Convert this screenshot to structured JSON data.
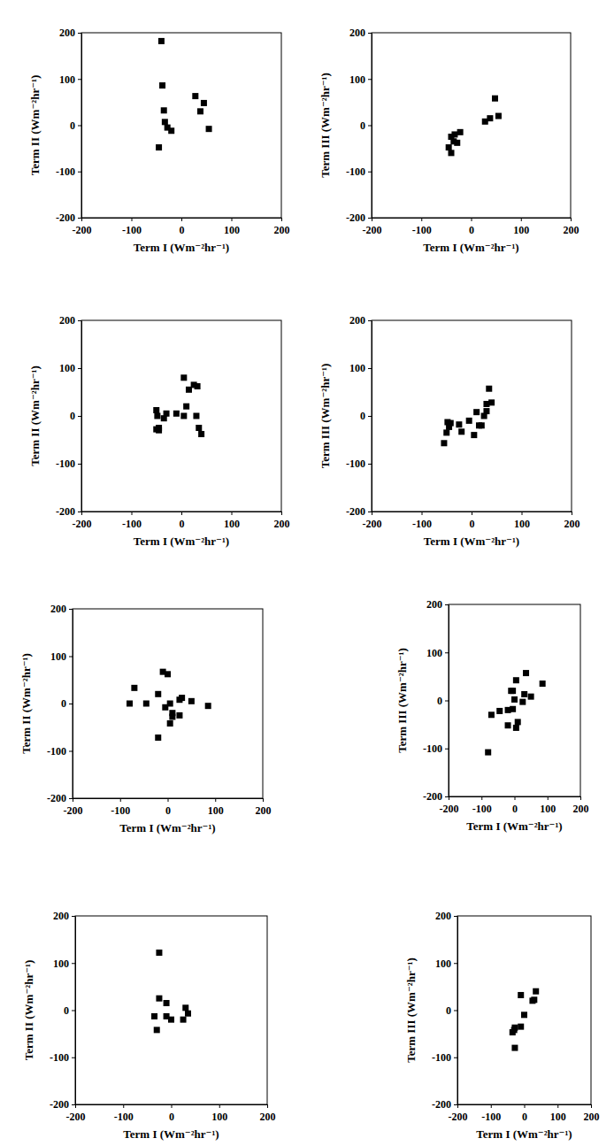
{
  "chart_data": [
    {
      "type": "scatter",
      "x_label": "Term I (Wm⁻²hr⁻¹)",
      "y_label": "Term II (Wm⁻²hr⁻¹)",
      "color": "#000000",
      "marker": "square",
      "x": [
        -40,
        -38,
        -35,
        -33,
        -28,
        -20,
        -45,
        28,
        45,
        38,
        55
      ],
      "values": [
        182,
        86,
        32,
        7,
        -5,
        -12,
        -48,
        63,
        48,
        30,
        -8
      ],
      "xlim": [
        -200,
        200
      ],
      "ylim": [
        -200,
        200
      ],
      "xticks": [
        -200,
        -100,
        0,
        100,
        200
      ],
      "yticks": [
        -200,
        -100,
        0,
        100,
        200
      ]
    },
    {
      "type": "scatter",
      "x_label": "Term I (Wm⁻²hr⁻¹)",
      "y_label": "Term III (Wm⁻²hr⁻¹)",
      "color": "#000000",
      "marker": "square",
      "x": [
        -45,
        -40,
        -40,
        -35,
        -33,
        -28,
        -22,
        28,
        38,
        48,
        55
      ],
      "values": [
        -48,
        -60,
        -25,
        -35,
        -20,
        -38,
        -15,
        8,
        15,
        58,
        20
      ],
      "xlim": [
        -200,
        200
      ],
      "ylim": [
        -200,
        200
      ],
      "xticks": [
        -200,
        -100,
        0,
        100,
        200
      ],
      "yticks": [
        -200,
        -100,
        0,
        100,
        200
      ]
    },
    {
      "type": "scatter",
      "x_label": "Term I (Wm⁻²hr⁻¹)",
      "y_label": "Term II (Wm⁻²hr⁻¹)",
      "color": "#000000",
      "marker": "square",
      "x": [
        -50,
        -48,
        -45,
        -50,
        -45,
        -30,
        -35,
        -10,
        5,
        10,
        15,
        25,
        32,
        5,
        30,
        35,
        40
      ],
      "values": [
        12,
        0,
        -25,
        -28,
        -30,
        5,
        -5,
        5,
        80,
        20,
        55,
        65,
        62,
        0,
        0,
        -25,
        -38
      ],
      "xlim": [
        -200,
        200
      ],
      "ylim": [
        -200,
        200
      ],
      "xticks": [
        -200,
        -100,
        0,
        100,
        200
      ],
      "yticks": [
        -200,
        -100,
        0,
        100,
        200
      ]
    },
    {
      "type": "scatter",
      "x_label": "Term I (Wm⁻²hr⁻¹)",
      "y_label": "Term III (Wm⁻²hr⁻¹)",
      "color": "#000000",
      "marker": "square",
      "x": [
        -55,
        -50,
        -48,
        -45,
        -42,
        -25,
        -20,
        -5,
        5,
        10,
        15,
        25,
        30,
        30,
        35,
        40,
        20
      ],
      "values": [
        -57,
        -35,
        -13,
        -23,
        -15,
        -18,
        -33,
        -10,
        -40,
        8,
        -20,
        0,
        10,
        25,
        57,
        28,
        -20
      ],
      "xlim": [
        -200,
        200
      ],
      "ylim": [
        -200,
        200
      ],
      "xticks": [
        -200,
        -100,
        0,
        100,
        200
      ],
      "yticks": [
        -200,
        -100,
        0,
        100,
        200
      ]
    },
    {
      "type": "scatter",
      "x_label": "Term I (Wm⁻²hr⁻¹)",
      "y_label": "Term II (Wm⁻²hr⁻¹)",
      "color": "#000000",
      "marker": "square",
      "x": [
        -80,
        -70,
        -45,
        -20,
        -20,
        -10,
        0,
        -5,
        5,
        5,
        10,
        10,
        25,
        25,
        30,
        50,
        85
      ],
      "values": [
        0,
        33,
        0,
        20,
        -72,
        67,
        62,
        -8,
        0,
        -42,
        -20,
        -28,
        -25,
        8,
        12,
        5,
        -5
      ],
      "xlim": [
        -200,
        200
      ],
      "ylim": [
        -200,
        200
      ],
      "xticks": [
        -200,
        -100,
        0,
        100,
        200
      ],
      "yticks": [
        -200,
        -100,
        0,
        100,
        200
      ]
    },
    {
      "type": "scatter",
      "x_label": "Term I (Wm⁻²hr⁻¹)",
      "y_label": "Term III (Wm⁻²hr⁻¹)",
      "color": "#000000",
      "marker": "square",
      "x": [
        -80,
        -70,
        -45,
        -20,
        -20,
        -10,
        -5,
        -5,
        0,
        5,
        5,
        10,
        25,
        30,
        35,
        50,
        85
      ],
      "values": [
        -108,
        -30,
        -22,
        -20,
        -52,
        20,
        20,
        -18,
        2,
        -57,
        42,
        -45,
        -3,
        13,
        57,
        8,
        35
      ],
      "xlim": [
        -200,
        200
      ],
      "ylim": [
        -200,
        200
      ],
      "xticks": [
        -200,
        -100,
        0,
        100,
        200
      ],
      "yticks": [
        -200,
        -100,
        0,
        100,
        200
      ]
    },
    {
      "type": "scatter",
      "x_label": "Term I (Wm⁻²hr⁻¹)",
      "y_label": "Term II (Wm⁻²hr⁻¹)",
      "color": "#000000",
      "marker": "square",
      "x": [
        -25,
        -25,
        -35,
        -30,
        -10,
        -10,
        0,
        25,
        30,
        35
      ],
      "values": [
        122,
        25,
        -13,
        -42,
        15,
        -13,
        -20,
        -20,
        5,
        -7
      ],
      "xlim": [
        -200,
        200
      ],
      "ylim": [
        -200,
        200
      ],
      "xticks": [
        -200,
        -100,
        0,
        100,
        200
      ],
      "yticks": [
        -200,
        -100,
        0,
        100,
        200
      ]
    },
    {
      "type": "scatter",
      "x_label": "Term I (Wm⁻²hr⁻¹)",
      "y_label": "Term III (Wm⁻²hr⁻¹)",
      "color": "#000000",
      "marker": "square",
      "x": [
        -35,
        -30,
        -28,
        -28,
        -10,
        -10,
        0,
        25,
        30,
        35
      ],
      "values": [
        -47,
        -42,
        -37,
        -80,
        -35,
        32,
        -10,
        20,
        22,
        40
      ],
      "xlim": [
        -200,
        200
      ],
      "ylim": [
        -200,
        200
      ],
      "xticks": [
        -200,
        -100,
        0,
        100,
        200
      ],
      "yticks": [
        -200,
        -100,
        0,
        100,
        200
      ]
    }
  ]
}
